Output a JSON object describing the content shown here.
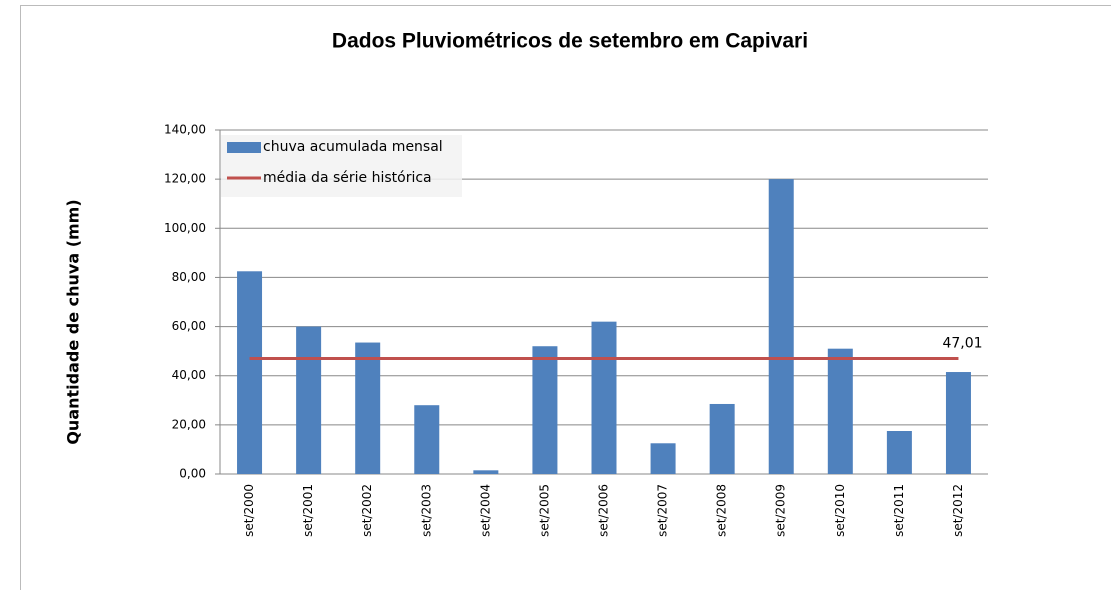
{
  "chart_data": {
    "type": "bar",
    "title": "Dados Pluviométricos de setembro em Capivari",
    "y_label": "Quantidade de chuva (mm)",
    "categories": [
      "set/2000",
      "set/2001",
      "set/2002",
      "set/2003",
      "set/2004",
      "set/2005",
      "set/2006",
      "set/2007",
      "set/2008",
      "set/2009",
      "set/2010",
      "set/2011",
      "set/2012"
    ],
    "series": [
      {
        "name": "chuva acumulada mensal",
        "type": "bar",
        "color": "#4f81bd",
        "values": [
          82.5,
          60,
          53.5,
          28,
          1.5,
          52,
          62,
          12.5,
          28.5,
          120,
          51,
          17.5,
          41.5
        ]
      },
      {
        "name": "média da série histórica",
        "type": "line",
        "color": "#c0504d",
        "values": [
          47.01,
          47.01,
          47.01,
          47.01,
          47.01,
          47.01,
          47.01,
          47.01,
          47.01,
          47.01,
          47.01,
          47.01,
          47.01
        ],
        "value_labels": [
          null,
          null,
          null,
          null,
          null,
          null,
          null,
          null,
          null,
          null,
          null,
          null,
          "47,01"
        ]
      }
    ],
    "ylim": [
      0,
      140
    ],
    "yticks": [
      {
        "value": 0,
        "label": "0,00"
      },
      {
        "value": 20,
        "label": "20,00"
      },
      {
        "value": 40,
        "label": "40,00"
      },
      {
        "value": 60,
        "label": "60,00"
      },
      {
        "value": 80,
        "label": "80,00"
      },
      {
        "value": 100,
        "label": "100,00"
      },
      {
        "value": 120,
        "label": "120,00"
      },
      {
        "value": 140,
        "label": "140,00"
      }
    ],
    "grid": true,
    "legend": "top-left"
  }
}
